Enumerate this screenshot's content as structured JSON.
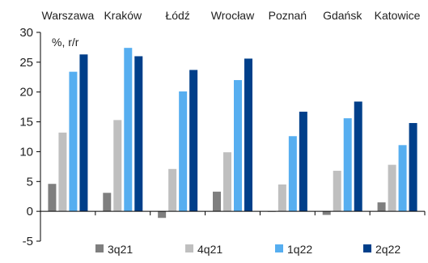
{
  "chart_data": {
    "type": "bar",
    "title": "",
    "xlabel": "",
    "ylabel": "",
    "unit_label": "%, r/r",
    "categories": [
      "Warszawa",
      "Kraków",
      "Łódź",
      "Wrocław",
      "Poznań",
      "Gdańsk",
      "Katowice"
    ],
    "series": [
      {
        "name": "3q21",
        "color": "#7f7f7f",
        "values": [
          4.6,
          3.1,
          -1.1,
          3.3,
          0.0,
          -0.6,
          1.5
        ]
      },
      {
        "name": "4q21",
        "color": "#bfbfbf",
        "values": [
          13.2,
          15.3,
          7.1,
          9.9,
          4.5,
          6.8,
          7.8
        ]
      },
      {
        "name": "1q22",
        "color": "#56aef0",
        "values": [
          23.4,
          27.4,
          20.1,
          22.0,
          12.6,
          15.6,
          11.1
        ]
      },
      {
        "name": "2q22",
        "color": "#003f8a",
        "values": [
          26.3,
          26.0,
          23.7,
          25.6,
          16.7,
          18.4,
          14.8
        ]
      }
    ],
    "ylim": [
      -5,
      30
    ],
    "yticks": [
      -5,
      0,
      5,
      10,
      15,
      20,
      25,
      30
    ],
    "grid": false,
    "legend_position": "bottom",
    "category_labels_position": "top"
  }
}
